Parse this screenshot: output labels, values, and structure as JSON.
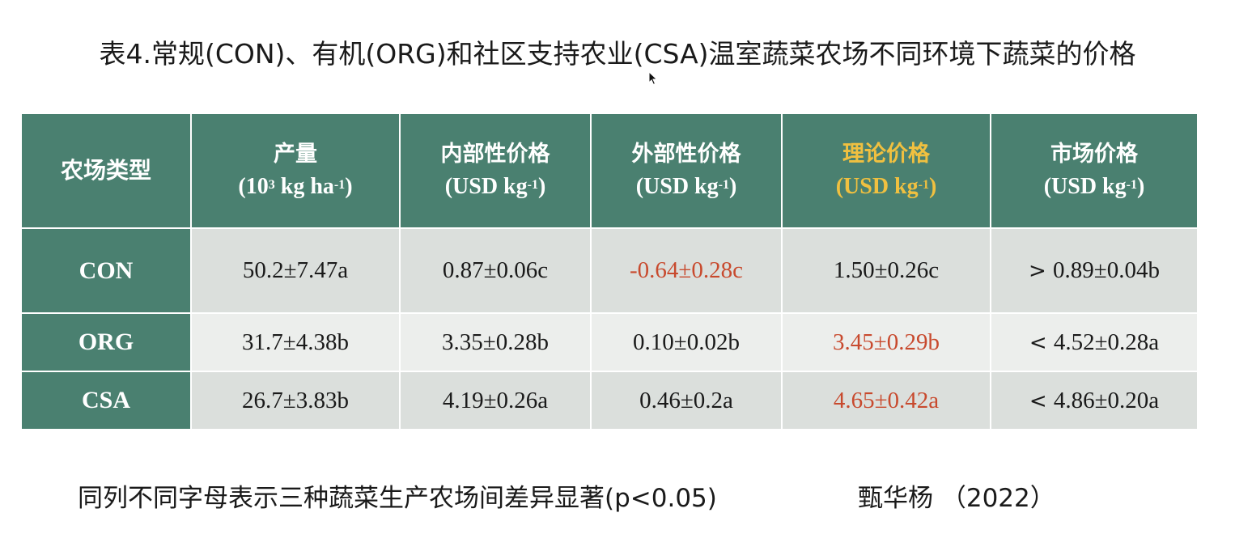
{
  "title": "表4.常规(CON)、有机(ORG)和社区支持农业(CSA)温室蔬菜农场不同环境下蔬菜的价格",
  "table": {
    "headers": [
      {
        "label": "农场类型",
        "unit_pre": "",
        "unit_sup": "",
        "unit_post": ""
      },
      {
        "label": "产量",
        "unit_pre": "(10",
        "unit_sup": "3",
        "unit_mid": " kg ha",
        "unit_sup2": "-1",
        "unit_post": ")"
      },
      {
        "label": "内部性价格",
        "unit_pre": "(USD kg",
        "unit_sup": "-1",
        "unit_post": ")"
      },
      {
        "label": "外部性价格",
        "unit_pre": "(USD kg",
        "unit_sup": "-1",
        "unit_post": ")"
      },
      {
        "label": "理论价格",
        "unit_pre": "(USD kg",
        "unit_sup": "-1",
        "unit_post": ")"
      },
      {
        "label": "市场价格",
        "unit_pre": "(USD kg",
        "unit_sup": "-1",
        "unit_post": ")"
      }
    ],
    "rows": [
      {
        "farm": "CON",
        "yield": "50.2±7.47a",
        "internal": "0.87±0.06c",
        "external": "-0.64±0.28c",
        "theoretical": "1.50±0.26c",
        "comparison": ">",
        "market": "0.89±0.04b"
      },
      {
        "farm": "ORG",
        "yield": "31.7±4.38b",
        "internal": "3.35±0.28b",
        "external": "0.10±0.02b",
        "theoretical": "3.45±0.29b",
        "comparison": "<",
        "market": "4.52±0.28a"
      },
      {
        "farm": "CSA",
        "yield": "26.7±3.83b",
        "internal": "4.19±0.26a",
        "external": "0.46±0.2a",
        "theoretical": "4.65±0.42a",
        "comparison": "<",
        "market": "4.86±0.20a"
      }
    ]
  },
  "footnote": "同列不同字母表示三种蔬菜生产农场间差异显著(p<0.05)",
  "citation": "甄华杨 （2022）",
  "colors": {
    "header_bg": "#4a8070",
    "highlight_header": "#f0c040",
    "highlight_value": "#c84a2e",
    "row_bg_dark": "#dbdfdc",
    "row_bg_light": "#eceeec"
  }
}
